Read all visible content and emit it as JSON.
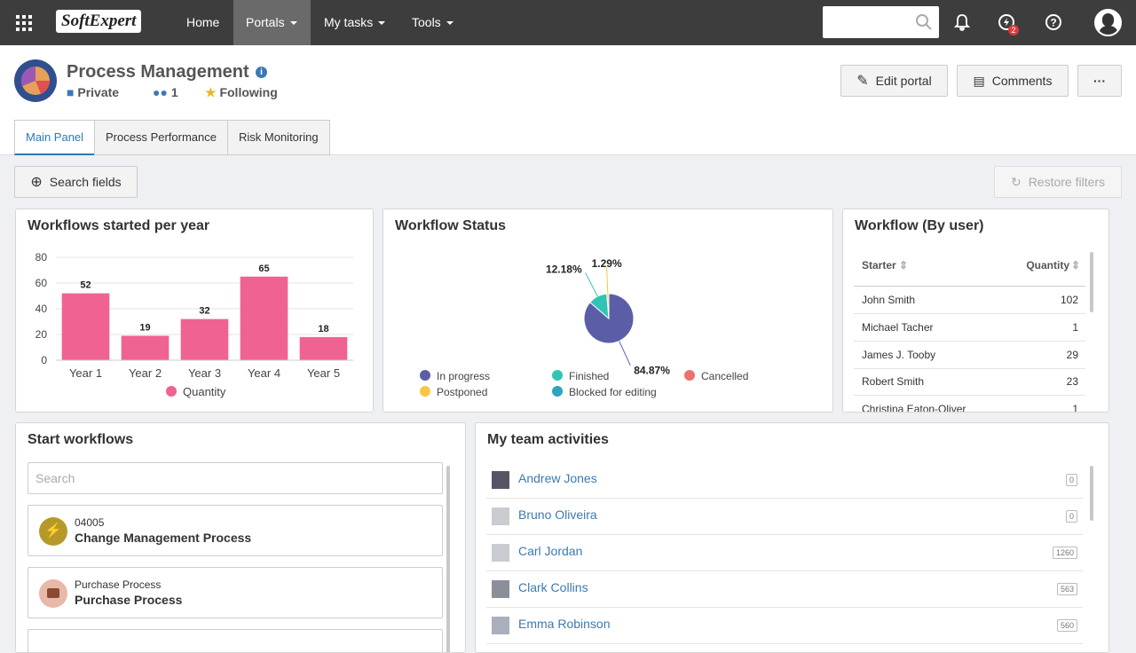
{
  "nav": {
    "logo": "SoftExpert",
    "items": [
      "Home",
      "Portals",
      "My tasks",
      "Tools"
    ],
    "notification_badge": 2
  },
  "header": {
    "title": "Process Management",
    "privacy": "Private",
    "members": 1,
    "follow": "Following"
  },
  "buttons": {
    "edit": "Edit portal",
    "comments": "Comments"
  },
  "tabs": [
    "Main Panel",
    "Process Performance",
    "Risk Monitoring"
  ],
  "toolbar": {
    "search_fields": "Search fields",
    "restore": "Restore filters"
  },
  "chart_data": [
    {
      "type": "bar",
      "title": "Workflows started per year",
      "categories": [
        "Year 1",
        "Year 2",
        "Year 3",
        "Year 4",
        "Year 5"
      ],
      "series": [
        {
          "name": "Quantity",
          "color": "#f06292",
          "values": [
            52,
            19,
            32,
            65,
            18
          ]
        }
      ],
      "ylim": [
        0,
        80
      ],
      "yticks": [
        0,
        20,
        40,
        60,
        80
      ],
      "grid": true
    },
    {
      "type": "pie",
      "title": "Workflow Status",
      "categories": [
        "In progress",
        "Finished",
        "Cancelled",
        "Postponed",
        "Blocked for editing"
      ],
      "values": [
        84.87,
        12.18,
        0,
        1.29,
        0
      ],
      "value_labels": [
        "84.87%",
        "12.18%",
        null,
        "1.29%",
        null
      ],
      "colors": [
        "#5b5ea6",
        "#31c4b5",
        "#f0706a",
        "#f7c744",
        "#2aa5bf"
      ]
    }
  ],
  "workflow_by_user": {
    "title": "Workflow (By user)",
    "columns": [
      "Starter",
      "Quantity"
    ],
    "rows": [
      [
        "John Smith",
        102
      ],
      [
        "Michael Tacher",
        1
      ],
      [
        "James J. Tooby",
        29
      ],
      [
        "Robert Smith",
        23
      ],
      [
        "Christina Eaton-Oliver",
        1
      ]
    ]
  },
  "start_workflows": {
    "title": "Start workflows",
    "search_placeholder": "Search",
    "items": [
      {
        "code": "04005",
        "name": "Change Management Process"
      },
      {
        "code": "Purchase Process",
        "name": "Purchase Process"
      }
    ]
  },
  "team_activities": {
    "title": "My team activities",
    "members": [
      {
        "name": "Andrew Jones",
        "count": 0
      },
      {
        "name": "Bruno Oliveira",
        "count": 0
      },
      {
        "name": "Carl Jordan",
        "count": 1260
      },
      {
        "name": "Clark Collins",
        "count": 563
      },
      {
        "name": "Emma Robinson",
        "count": 560
      }
    ]
  }
}
